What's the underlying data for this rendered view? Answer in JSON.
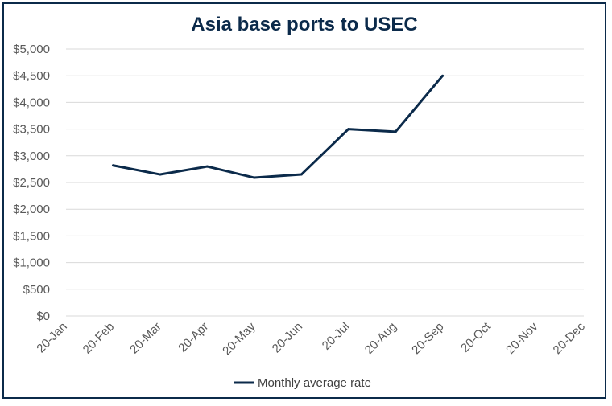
{
  "chart_data": {
    "type": "line",
    "title": "Asia base ports to USEC",
    "xlabel": "",
    "ylabel": "",
    "categories": [
      "20-Jan",
      "20-Feb",
      "20-Mar",
      "20-Apr",
      "20-May",
      "20-Jun",
      "20-Jul",
      "20-Aug",
      "20-Sep",
      "20-Oct",
      "20-Nov",
      "20-Dec"
    ],
    "ylim": [
      0,
      5000
    ],
    "yticks": [
      0,
      500,
      1000,
      1500,
      2000,
      2500,
      3000,
      3500,
      4000,
      4500,
      5000
    ],
    "ytick_labels": [
      "$0",
      "$500",
      "$1,000",
      "$1,500",
      "$2,000",
      "$2,500",
      "$3,000",
      "$3,500",
      "$4,000",
      "$4,500",
      "$5,000"
    ],
    "grid": true,
    "legend_position": "bottom",
    "series": [
      {
        "name": "Monthly average rate",
        "color": "#0b2a4a",
        "values": [
          null,
          2820,
          2650,
          2800,
          2590,
          2650,
          3500,
          3450,
          4500,
          null,
          null,
          null
        ]
      }
    ]
  }
}
